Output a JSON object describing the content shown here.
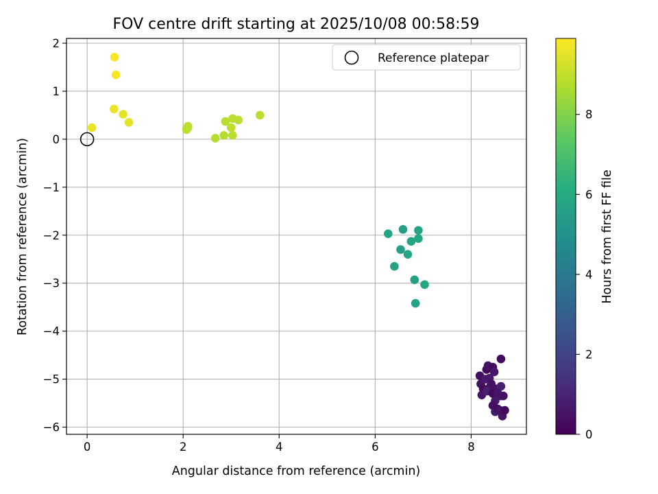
{
  "chart_data": {
    "type": "scatter",
    "title": "FOV centre drift starting at 2025/10/08 00:58:59",
    "xlabel": "Angular distance from reference (arcmin)",
    "ylabel": "Rotation from reference (arcmin)",
    "xlim": [
      -0.43,
      9.15
    ],
    "ylim": [
      -6.15,
      2.1
    ],
    "xticks": [
      0,
      2,
      4,
      6,
      8
    ],
    "yticks": [
      -6,
      -5,
      -4,
      -3,
      -2,
      -1,
      0,
      1,
      2
    ],
    "xtick_labels": [
      "0",
      "2",
      "4",
      "6",
      "8"
    ],
    "ytick_labels": [
      "−6",
      "−5",
      "−4",
      "−3",
      "−2",
      "−1",
      "0",
      "1",
      "2"
    ],
    "grid": true,
    "legend_position": "top-right",
    "reference": {
      "name": "Reference platepar",
      "x": 0,
      "y": 0
    },
    "colorbar": {
      "label": "Hours from first FF file",
      "range": [
        0,
        9.9
      ],
      "ticks": [
        0,
        2,
        4,
        6,
        8
      ],
      "tick_labels": [
        "0",
        "2",
        "4",
        "6",
        "8"
      ],
      "colormap": "viridis"
    },
    "points": [
      {
        "x": 8.18,
        "y": -4.93,
        "c": 0.4
      },
      {
        "x": 8.2,
        "y": -5.1,
        "c": 0.5
      },
      {
        "x": 8.25,
        "y": -5.2,
        "c": 0.3
      },
      {
        "x": 8.22,
        "y": -5.33,
        "c": 0.6
      },
      {
        "x": 8.3,
        "y": -5.0,
        "c": 0.8
      },
      {
        "x": 8.32,
        "y": -4.8,
        "c": 0.2
      },
      {
        "x": 8.35,
        "y": -4.72,
        "c": 0.5
      },
      {
        "x": 8.38,
        "y": -4.98,
        "c": 0.7
      },
      {
        "x": 8.4,
        "y": -5.15,
        "c": 0.4
      },
      {
        "x": 8.33,
        "y": -5.25,
        "c": 0.9
      },
      {
        "x": 8.45,
        "y": -4.75,
        "c": 0.3
      },
      {
        "x": 8.48,
        "y": -4.85,
        "c": 0.6
      },
      {
        "x": 8.5,
        "y": -5.2,
        "c": 0.5
      },
      {
        "x": 8.45,
        "y": -5.3,
        "c": 0.2
      },
      {
        "x": 8.5,
        "y": -5.45,
        "c": 0.7
      },
      {
        "x": 8.45,
        "y": -5.55,
        "c": 0.4
      },
      {
        "x": 8.5,
        "y": -5.68,
        "c": 0.8
      },
      {
        "x": 8.55,
        "y": -5.62,
        "c": 0.3
      },
      {
        "x": 8.6,
        "y": -5.65,
        "c": 0.6
      },
      {
        "x": 8.65,
        "y": -5.77,
        "c": 0.5
      },
      {
        "x": 8.7,
        "y": -5.65,
        "c": 0.2
      },
      {
        "x": 8.62,
        "y": -5.35,
        "c": 0.7
      },
      {
        "x": 8.67,
        "y": -5.35,
        "c": 0.4
      },
      {
        "x": 8.62,
        "y": -5.15,
        "c": 0.9
      },
      {
        "x": 8.55,
        "y": -5.28,
        "c": 0.6
      },
      {
        "x": 8.62,
        "y": -4.58,
        "c": 0.3
      },
      {
        "x": 8.42,
        "y": -5.1,
        "c": 0.5
      },
      {
        "x": 6.27,
        "y": -1.97,
        "c": 5.7
      },
      {
        "x": 6.58,
        "y": -1.88,
        "c": 5.6
      },
      {
        "x": 6.9,
        "y": -1.9,
        "c": 5.8
      },
      {
        "x": 6.9,
        "y": -2.07,
        "c": 5.9
      },
      {
        "x": 6.75,
        "y": -2.13,
        "c": 5.7
      },
      {
        "x": 6.53,
        "y": -2.3,
        "c": 5.6
      },
      {
        "x": 6.68,
        "y": -2.4,
        "c": 5.8
      },
      {
        "x": 6.4,
        "y": -2.65,
        "c": 5.7
      },
      {
        "x": 6.82,
        "y": -2.93,
        "c": 5.6
      },
      {
        "x": 7.03,
        "y": -3.03,
        "c": 5.8
      },
      {
        "x": 6.84,
        "y": -3.42,
        "c": 5.7
      },
      {
        "x": 0.1,
        "y": 0.24,
        "c": 9.6
      },
      {
        "x": 0.57,
        "y": 1.71,
        "c": 9.8
      },
      {
        "x": 0.6,
        "y": 1.34,
        "c": 9.8
      },
      {
        "x": 0.56,
        "y": 0.63,
        "c": 9.6
      },
      {
        "x": 0.75,
        "y": 0.52,
        "c": 9.5
      },
      {
        "x": 0.87,
        "y": 0.35,
        "c": 9.5
      },
      {
        "x": 2.07,
        "y": 0.2,
        "c": 8.9
      },
      {
        "x": 2.1,
        "y": 0.27,
        "c": 8.9
      },
      {
        "x": 2.1,
        "y": 0.24,
        "c": 8.9
      },
      {
        "x": 2.67,
        "y": 0.02,
        "c": 8.8
      },
      {
        "x": 2.85,
        "y": 0.08,
        "c": 8.8
      },
      {
        "x": 2.88,
        "y": 0.37,
        "c": 8.8
      },
      {
        "x": 3.0,
        "y": 0.24,
        "c": 8.9
      },
      {
        "x": 3.03,
        "y": 0.43,
        "c": 8.9
      },
      {
        "x": 3.03,
        "y": 0.08,
        "c": 8.8
      },
      {
        "x": 3.15,
        "y": 0.4,
        "c": 8.9
      },
      {
        "x": 3.6,
        "y": 0.5,
        "c": 8.9
      }
    ]
  }
}
